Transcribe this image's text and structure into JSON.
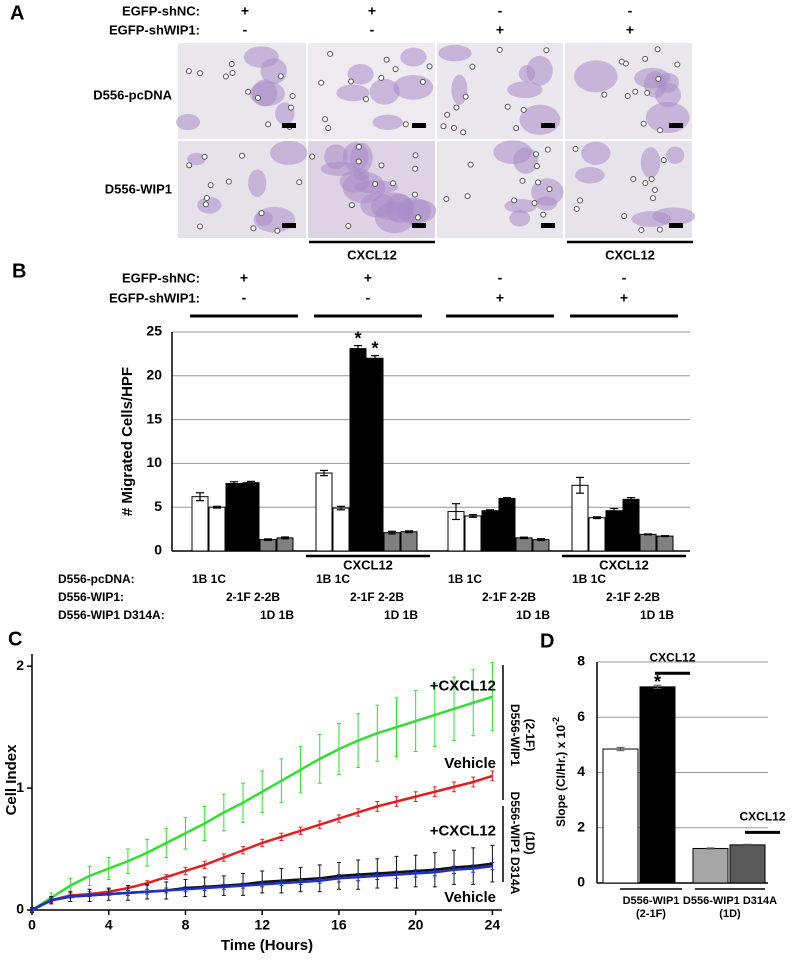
{
  "panel_a": {
    "letter": "A",
    "condition_labels": [
      "EGFP-shNC:",
      "EGFP-shWIP1:"
    ],
    "conditions": [
      [
        "+",
        "+",
        "-",
        "-"
      ],
      [
        "-",
        "-",
        "+",
        "+"
      ]
    ],
    "row_labels": [
      "D556-pcDNA",
      "D556-WIP1"
    ],
    "column_treatment": [
      null,
      "CXCL12",
      null,
      "CXCL12"
    ]
  },
  "chart_data": [
    {
      "type": "groupbar",
      "panel": "B",
      "condition_labels": [
        "EGFP-shNC:",
        "EGFP-shWIP1:"
      ],
      "conditions": [
        [
          "+",
          "+",
          "-",
          "-"
        ],
        [
          "-",
          "-",
          "+",
          "+"
        ]
      ],
      "ylabel": "# Migrated Cells/HPF",
      "ylim": [
        0,
        25
      ],
      "yticks": [
        0,
        5,
        10,
        15,
        20,
        25
      ],
      "grid": true,
      "group_treatment": [
        null,
        "CXCL12",
        null,
        "CXCL12"
      ],
      "series": [
        {
          "color": "#ffffff",
          "values": [
            6.2,
            8.9,
            4.5,
            7.5
          ],
          "errors": [
            0.45,
            0.3,
            0.9,
            0.9
          ]
        },
        {
          "color": "#ffffff",
          "values": [
            5.0,
            4.9,
            4.0,
            3.8
          ],
          "errors": [
            0.1,
            0.2,
            0.15,
            0.1
          ]
        },
        {
          "color": "#000000",
          "values": [
            7.7,
            23.1,
            4.6,
            4.6
          ],
          "errors": [
            0.2,
            0.35,
            0.1,
            0.25
          ]
        },
        {
          "color": "#000000",
          "values": [
            7.8,
            22.0,
            6.0,
            5.9
          ],
          "errors": [
            0.15,
            0.3,
            0.1,
            0.2
          ]
        },
        {
          "color": "#808080",
          "values": [
            1.3,
            2.1,
            1.5,
            1.9
          ],
          "errors": [
            0.08,
            0.15,
            0.08,
            0.05
          ]
        },
        {
          "color": "#808080",
          "values": [
            1.5,
            2.2,
            1.3,
            1.7
          ],
          "errors": [
            0.1,
            0.1,
            0.1,
            0.05
          ]
        }
      ],
      "annotations": [
        {
          "text": "*",
          "series": 2,
          "group": 1
        },
        {
          "text": "*",
          "series": 3,
          "group": 1
        }
      ],
      "bar_label_rows": [
        {
          "name": "D556-pcDNA:",
          "label": "1B 1C"
        },
        {
          "name": "D556-WIP1:",
          "label": "2-1F 2-2B"
        },
        {
          "name": "D556-WIP1 D314A:",
          "label": "1D 1B"
        }
      ]
    },
    {
      "type": "line",
      "panel": "C",
      "xlabel": "Time (Hours)",
      "ylabel": "Cell Index",
      "xlim": [
        0,
        24.5
      ],
      "ylim": [
        0,
        2.1
      ],
      "xticks": [
        0,
        4,
        8,
        12,
        16,
        20,
        24
      ],
      "yticks": [
        0,
        1,
        2
      ],
      "x": [
        0,
        1,
        2,
        3,
        4,
        5,
        6,
        7,
        8,
        9,
        10,
        11,
        12,
        13,
        14,
        15,
        16,
        17,
        18,
        19,
        20,
        21,
        22,
        23,
        24
      ],
      "series": [
        {
          "color": "#33dd33",
          "values": [
            0,
            0.1,
            0.2,
            0.28,
            0.34,
            0.4,
            0.47,
            0.55,
            0.63,
            0.71,
            0.8,
            0.88,
            0.97,
            1.06,
            1.15,
            1.24,
            1.32,
            1.39,
            1.45,
            1.5,
            1.55,
            1.6,
            1.65,
            1.7,
            1.75
          ],
          "errors": [
            0.02,
            0.04,
            0.06,
            0.08,
            0.09,
            0.1,
            0.11,
            0.12,
            0.13,
            0.14,
            0.15,
            0.16,
            0.17,
            0.18,
            0.19,
            0.2,
            0.21,
            0.22,
            0.23,
            0.24,
            0.25,
            0.26,
            0.26,
            0.27,
            0.28
          ]
        },
        {
          "color": "#e02020",
          "values": [
            0,
            0.08,
            0.12,
            0.13,
            0.15,
            0.18,
            0.22,
            0.27,
            0.32,
            0.37,
            0.43,
            0.49,
            0.55,
            0.6,
            0.65,
            0.7,
            0.75,
            0.8,
            0.85,
            0.89,
            0.93,
            0.97,
            1.01,
            1.05,
            1.1
          ],
          "errors": [
            0.01,
            0.02,
            0.02,
            0.02,
            0.02,
            0.02,
            0.02,
            0.02,
            0.03,
            0.03,
            0.03,
            0.03,
            0.03,
            0.03,
            0.03,
            0.03,
            0.03,
            0.03,
            0.04,
            0.04,
            0.04,
            0.04,
            0.04,
            0.04,
            0.04
          ]
        },
        {
          "color": "#111111",
          "values": [
            0,
            0.08,
            0.11,
            0.12,
            0.13,
            0.14,
            0.15,
            0.16,
            0.18,
            0.19,
            0.2,
            0.21,
            0.23,
            0.24,
            0.25,
            0.26,
            0.28,
            0.29,
            0.3,
            0.31,
            0.32,
            0.33,
            0.35,
            0.36,
            0.38
          ],
          "errors": [
            0.02,
            0.03,
            0.04,
            0.05,
            0.05,
            0.06,
            0.06,
            0.07,
            0.07,
            0.08,
            0.08,
            0.09,
            0.09,
            0.1,
            0.1,
            0.11,
            0.11,
            0.12,
            0.12,
            0.13,
            0.13,
            0.14,
            0.14,
            0.15,
            0.15
          ]
        },
        {
          "color": "#2030c0",
          "values": [
            0,
            0.08,
            0.11,
            0.12,
            0.13,
            0.14,
            0.15,
            0.16,
            0.17,
            0.18,
            0.19,
            0.2,
            0.21,
            0.22,
            0.23,
            0.24,
            0.26,
            0.27,
            0.28,
            0.29,
            0.3,
            0.31,
            0.33,
            0.34,
            0.36
          ],
          "errors": [
            0.01,
            0.01,
            0.01,
            0.01,
            0.01,
            0.02,
            0.02,
            0.02,
            0.02,
            0.02,
            0.02,
            0.02,
            0.02,
            0.02,
            0.02,
            0.02,
            0.03,
            0.03,
            0.03,
            0.03,
            0.03,
            0.03,
            0.03,
            0.03,
            0.03
          ]
        }
      ],
      "annotations": [
        {
          "text": "+CXCL12",
          "series": 0
        },
        {
          "text": "Vehicle",
          "series": 1
        },
        {
          "text": "+CXCL12",
          "series": 2
        },
        {
          "text": "Vehicle",
          "series": 3
        }
      ],
      "group_labels": [
        [
          "D556-WIP1",
          "(2-1F)"
        ],
        [
          "D556-WIP1 D314A",
          "(1D)"
        ]
      ]
    },
    {
      "type": "bar",
      "panel": "D",
      "ylabel": "Slope (CI/Hr.) x 10",
      "ylabel_exponent": "-2",
      "ylim": [
        0,
        8
      ],
      "yticks": [
        0,
        2,
        4,
        6,
        8
      ],
      "grid": true,
      "values": [
        4.85,
        7.1,
        1.25,
        1.38
      ],
      "errors": [
        0.06,
        0.06,
        0.02,
        0.02
      ],
      "colors": [
        "#ffffff",
        "#000000",
        "#a6a6a6",
        "#595959"
      ],
      "treatment": [
        null,
        "CXCL12",
        null,
        "CXCL12"
      ],
      "annotations": [
        {
          "text": "*",
          "bar": 1
        }
      ],
      "group_labels": [
        [
          "D556-WIP1",
          "(2-1F)"
        ],
        [
          "D556-WIP1 D314A",
          "(1D)"
        ]
      ]
    }
  ]
}
